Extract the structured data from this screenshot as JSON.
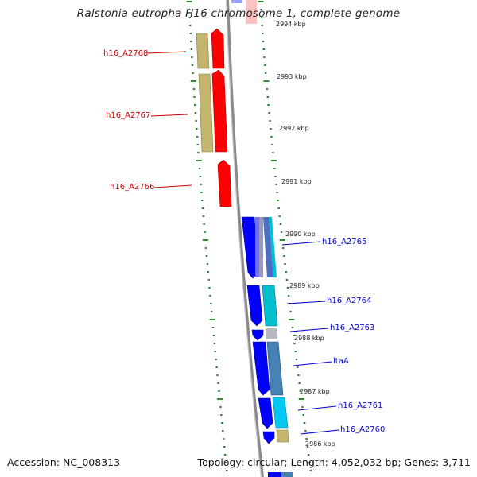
{
  "title": "Ralstonia eutropha H16 chromosome 1, complete genome",
  "footer": {
    "accession": "Accession: NC_008313",
    "stats": "Topology: circular; Length: 4,052,032 bp; Genes: 3,711"
  },
  "colors": {
    "backbone": "#8a8a8a",
    "tick": "#2e8b2e",
    "label_red": "#cc0000",
    "label_blue": "#0000cc",
    "gene_red": "#ff0000",
    "gene_olive": "#c0b46a",
    "gene_blue": "#0000ff",
    "gene_cyan": "#00b8d0",
    "gene_steel": "#4682b4",
    "gene_gray": "#b0b0b8"
  },
  "scale_labels": [
    "2994 kbp",
    "2993 kbp",
    "2992 kbp",
    "2991 kbp",
    "2990 kbp",
    "2989 kbp",
    "2988 kbp",
    "2987 kbp",
    "2986 kbp"
  ],
  "gene_labels": [
    {
      "text": "h16_A2768",
      "color": "label_red"
    },
    {
      "text": "h16_A2767",
      "color": "label_red"
    },
    {
      "text": "h16_A2766",
      "color": "label_red"
    },
    {
      "text": "h16_A2765",
      "color": "label_blue"
    },
    {
      "text": "h16_A2764",
      "color": "label_blue"
    },
    {
      "text": "h16_A2763",
      "color": "label_blue"
    },
    {
      "text": "ltaA",
      "color": "label_blue"
    },
    {
      "text": "h16_A2761",
      "color": "label_blue"
    },
    {
      "text": "h16_A2760",
      "color": "label_blue"
    }
  ]
}
